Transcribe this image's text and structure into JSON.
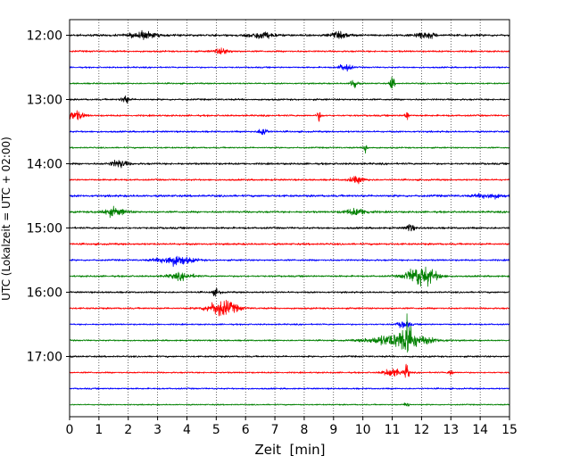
{
  "chart_data": {
    "type": "line",
    "title": "",
    "xlabel": "Zeit  [min]",
    "ylabel": "UTC (Lokalzeit = UTC + 02:00)",
    "xlim": [
      0,
      15
    ],
    "x_ticks": [
      0,
      1,
      2,
      3,
      4,
      5,
      6,
      7,
      8,
      9,
      10,
      11,
      12,
      13,
      14,
      15
    ],
    "grid": "vertical dotted lines at each minute",
    "y_ticks": [
      "12:00",
      "13:00",
      "14:00",
      "15:00",
      "16:00",
      "17:00"
    ],
    "trace_start_hours": [
      12.0,
      12.25,
      12.5,
      12.75,
      13.0,
      13.25,
      13.5,
      13.75,
      14.0,
      14.25,
      14.5,
      14.75,
      15.0,
      15.25,
      15.5,
      15.75,
      16.0,
      16.25,
      16.5,
      16.75,
      17.0,
      17.25,
      17.5,
      17.75
    ],
    "trace_colors": [
      "#000000",
      "#ff0000",
      "#0000ff",
      "#008000"
    ],
    "trace_noise": [
      0.09,
      0.07,
      0.06,
      0.06,
      0.07,
      0.07,
      0.07,
      0.06,
      0.08,
      0.07,
      0.09,
      0.08,
      0.08,
      0.08,
      0.07,
      0.07,
      0.07,
      0.07,
      0.06,
      0.06,
      0.07,
      0.06,
      0.06,
      0.05
    ],
    "events": [
      {
        "trace": 0,
        "t": 2.5,
        "amp": 0.28,
        "dur": 0.6
      },
      {
        "trace": 0,
        "t": 6.5,
        "amp": 0.25,
        "dur": 0.6
      },
      {
        "trace": 0,
        "t": 9.2,
        "amp": 0.2,
        "dur": 0.5
      },
      {
        "trace": 0,
        "t": 12.1,
        "amp": 0.25,
        "dur": 0.5
      },
      {
        "trace": 1,
        "t": 5.2,
        "amp": 0.22,
        "dur": 0.4
      },
      {
        "trace": 2,
        "t": 9.4,
        "amp": 0.3,
        "dur": 0.3
      },
      {
        "trace": 3,
        "t": 9.7,
        "amp": 0.55,
        "dur": 0.15
      },
      {
        "trace": 3,
        "t": 11.0,
        "amp": 0.65,
        "dur": 0.1
      },
      {
        "trace": 4,
        "t": 1.9,
        "amp": 0.3,
        "dur": 0.2
      },
      {
        "trace": 5,
        "t": 0.2,
        "amp": 0.35,
        "dur": 0.4
      },
      {
        "trace": 5,
        "t": 8.5,
        "amp": 0.4,
        "dur": 0.1
      },
      {
        "trace": 5,
        "t": 11.5,
        "amp": 0.4,
        "dur": 0.1
      },
      {
        "trace": 6,
        "t": 6.6,
        "amp": 0.35,
        "dur": 0.2
      },
      {
        "trace": 7,
        "t": 10.1,
        "amp": 0.45,
        "dur": 0.1
      },
      {
        "trace": 8,
        "t": 1.7,
        "amp": 0.3,
        "dur": 0.4
      },
      {
        "trace": 9,
        "t": 9.8,
        "amp": 0.25,
        "dur": 0.4
      },
      {
        "trace": 10,
        "t": 14.3,
        "amp": 0.2,
        "dur": 0.6
      },
      {
        "trace": 11,
        "t": 1.5,
        "amp": 0.3,
        "dur": 0.6
      },
      {
        "trace": 11,
        "t": 9.8,
        "amp": 0.25,
        "dur": 0.6
      },
      {
        "trace": 12,
        "t": 11.6,
        "amp": 0.3,
        "dur": 0.2
      },
      {
        "trace": 14,
        "t": 3.6,
        "amp": 0.4,
        "dur": 0.8
      },
      {
        "trace": 15,
        "t": 12.0,
        "amp": 0.85,
        "dur": 0.7
      },
      {
        "trace": 15,
        "t": 3.8,
        "amp": 0.25,
        "dur": 0.6
      },
      {
        "trace": 16,
        "t": 5.0,
        "amp": 0.25,
        "dur": 0.2
      },
      {
        "trace": 17,
        "t": 5.2,
        "amp": 0.65,
        "dur": 0.7
      },
      {
        "trace": 18,
        "t": 11.4,
        "amp": 0.3,
        "dur": 0.3
      },
      {
        "trace": 19,
        "t": 11.5,
        "amp": 1.35,
        "dur": 0.25
      },
      {
        "trace": 19,
        "t": 11.3,
        "amp": 0.55,
        "dur": 1.4
      },
      {
        "trace": 21,
        "t": 11.0,
        "amp": 0.35,
        "dur": 0.4
      },
      {
        "trace": 21,
        "t": 11.5,
        "amp": 0.8,
        "dur": 0.1
      },
      {
        "trace": 21,
        "t": 13.0,
        "amp": 0.3,
        "dur": 0.1
      },
      {
        "trace": 23,
        "t": 11.5,
        "amp": 0.35,
        "dur": 0.1
      }
    ]
  }
}
